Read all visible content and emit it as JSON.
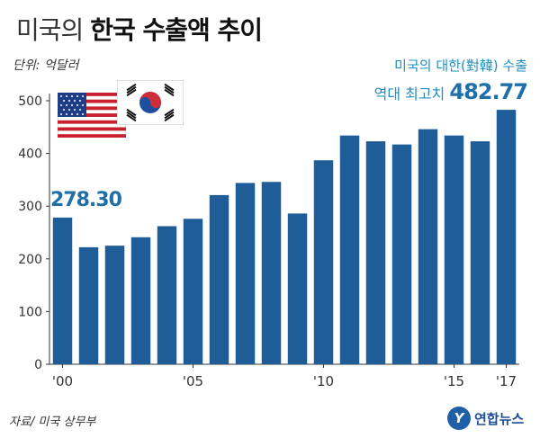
{
  "title": {
    "light": "미국의",
    "bold": "한국 수출액 추이"
  },
  "unit": "단위: 억달러",
  "note": {
    "line1": "미국의 대한(對韓) 수출",
    "line2_label": "역대 최고치",
    "line2_value": "482.77"
  },
  "first_label": "278.30",
  "source": "자료/ 미국 상무부",
  "brand": {
    "mark": "Y",
    "name": "연합뉴스"
  },
  "colors": {
    "bar": "#1f5d98",
    "accent": "#1f8fbf",
    "axis": "#333333"
  },
  "flags": [
    {
      "icon": "us-flag-icon",
      "country": "United States"
    },
    {
      "icon": "korea-flag-icon",
      "country": "South Korea"
    }
  ],
  "chart_data": {
    "type": "bar",
    "title": "미국의 한국 수출액 추이",
    "ylabel": "",
    "xlabel": "",
    "ylim": [
      0,
      500
    ],
    "y_ticks": [
      0,
      100,
      200,
      300,
      400,
      500
    ],
    "categories": [
      "2000",
      "2001",
      "2002",
      "2003",
      "2004",
      "2005",
      "2006",
      "2007",
      "2008",
      "2009",
      "2010",
      "2011",
      "2012",
      "2013",
      "2014",
      "2015",
      "2016",
      "2017"
    ],
    "x_tick_labels": {
      "2000": "'00",
      "2005": "'05",
      "2010": "'10",
      "2015": "'15",
      "2017": "'17"
    },
    "values": [
      278.3,
      222,
      225,
      241,
      262,
      276,
      321,
      344,
      346,
      286,
      387,
      434,
      423,
      417,
      446,
      434,
      423,
      482.77
    ],
    "annotations": [
      {
        "category": "2000",
        "text": "278.30"
      },
      {
        "category": "2017",
        "text": "역대 최고치 482.77"
      }
    ],
    "grid": false
  }
}
